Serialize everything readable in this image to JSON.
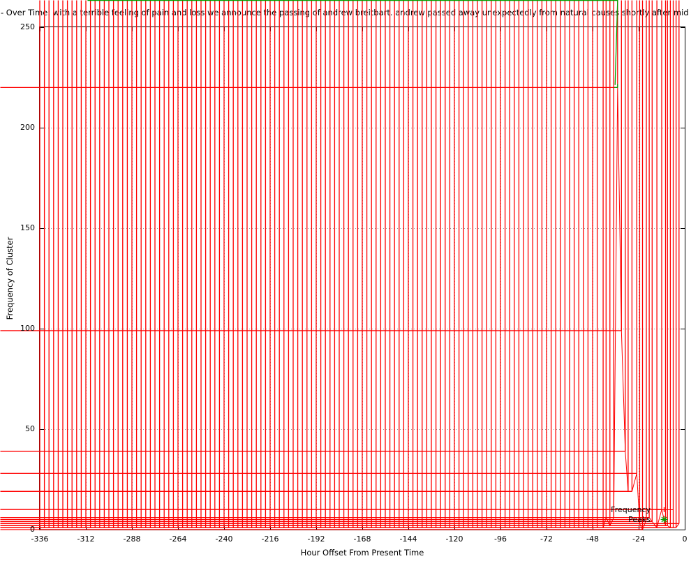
{
  "title": "- Over Time: with a terrible feeling of pain and loss we announce the passing of andrew breitbart. andrew passed away unexpectedly from natural causes shortly after mid",
  "axes": {
    "x": {
      "label": "Hour Offset From Present Time"
    },
    "y": {
      "label": "Frequency of Cluster"
    }
  },
  "legend": {
    "position": "inside-bottom-right",
    "entries": [
      {
        "label": "Frequency",
        "color": "#ff0000",
        "marker": "plus",
        "line": true
      },
      {
        "label": "Peaks",
        "color": "#00a000",
        "marker": "asterisk",
        "line": false
      }
    ]
  },
  "colors": {
    "background": "#ffffff",
    "axis": "#000000",
    "grid": "#999999",
    "text": "#000000",
    "frequency_series": "#ff0000",
    "peaks_series": "#00a000"
  },
  "chart_data": {
    "type": "line",
    "title": "- Over Time: with a terrible feeling of pain and loss we announce the passing of andrew breitbart. andrew passed away unexpectedly from natural causes shortly after mid",
    "xlabel": "Hour Offset From Present Time",
    "ylabel": "Frequency of Cluster",
    "xlim": [
      -336,
      0
    ],
    "ylim": [
      0,
      250
    ],
    "grid": true,
    "x_ticks": [
      -336,
      -312,
      -288,
      -264,
      -240,
      -216,
      -192,
      -168,
      -144,
      -120,
      -96,
      -72,
      -48,
      -24,
      0
    ],
    "y_ticks": [
      0,
      50,
      100,
      150,
      200,
      250
    ],
    "series": [
      {
        "name": "Frequency",
        "color": "#ff0000",
        "marker": "plus",
        "baseline_segment": {
          "x_start": -336,
          "x_end": -44.6,
          "step": 2.4,
          "value": 1
        },
        "points": [
          [
            -42.5,
            1
          ],
          [
            -41,
            6
          ],
          [
            -39,
            2
          ],
          [
            -37,
            6
          ],
          [
            -35,
            220
          ],
          [
            -33,
            99
          ],
          [
            -31,
            39
          ],
          [
            -29.5,
            19
          ],
          [
            -27.5,
            19
          ],
          [
            -25,
            28
          ],
          [
            -23.5,
            3
          ],
          [
            -22,
            0
          ],
          [
            -20,
            5
          ],
          [
            -18.5,
            6
          ],
          [
            -17,
            4
          ],
          [
            -14.5,
            1
          ],
          [
            -12,
            10
          ],
          [
            -10,
            2
          ],
          [
            -9,
            2
          ],
          [
            -7.5,
            1
          ],
          [
            -6,
            1
          ],
          [
            -4.5,
            1
          ],
          [
            -3,
            3
          ]
        ]
      },
      {
        "name": "Peaks",
        "color": "#00a000",
        "marker": "asterisk",
        "points": [
          [
            -35,
            220
          ]
        ]
      }
    ]
  }
}
